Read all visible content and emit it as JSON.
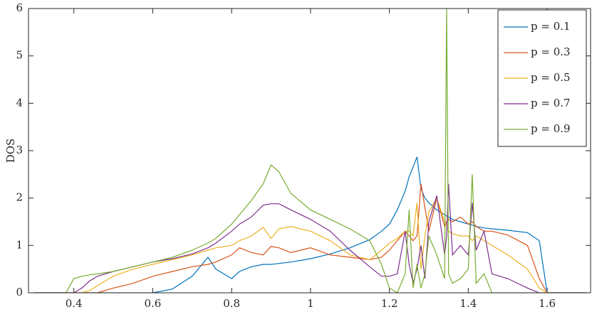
{
  "chart_data": {
    "type": "line",
    "ylabel": "DOS",
    "x": [
      0.3,
      0.35,
      0.38,
      0.4,
      0.42,
      0.44,
      0.46,
      0.5,
      0.55,
      0.6,
      0.65,
      0.7,
      0.74,
      0.76,
      0.8,
      0.82,
      0.85,
      0.88,
      0.9,
      0.92,
      0.95,
      1.0,
      1.05,
      1.1,
      1.15,
      1.18,
      1.2,
      1.22,
      1.24,
      1.25,
      1.26,
      1.27,
      1.28,
      1.29,
      1.3,
      1.32,
      1.34,
      1.345,
      1.35,
      1.36,
      1.38,
      1.4,
      1.41,
      1.42,
      1.44,
      1.46,
      1.5,
      1.55,
      1.58,
      1.6,
      1.62,
      1.7
    ],
    "series": [
      {
        "name": "p = 0.1",
        "color": "#0072bd",
        "values": [
          0,
          0,
          0,
          0,
          0,
          0,
          0,
          0,
          0,
          0,
          0.08,
          0.35,
          0.75,
          0.5,
          0.3,
          0.45,
          0.55,
          0.6,
          0.6,
          0.62,
          0.65,
          0.72,
          0.82,
          0.95,
          1.12,
          1.3,
          1.45,
          1.75,
          2.15,
          2.45,
          2.65,
          2.87,
          2.2,
          2.0,
          1.9,
          1.75,
          1.65,
          1.62,
          1.6,
          1.55,
          1.5,
          1.45,
          1.43,
          1.4,
          1.37,
          1.35,
          1.32,
          1.27,
          1.1,
          0,
          0,
          0
        ]
      },
      {
        "name": "p = 0.3",
        "color": "#d95319",
        "values": [
          0,
          0,
          0,
          0,
          0,
          0,
          0,
          0.1,
          0.2,
          0.35,
          0.45,
          0.55,
          0.6,
          0.65,
          0.8,
          0.95,
          0.85,
          0.8,
          0.98,
          0.95,
          0.85,
          0.95,
          0.8,
          0.75,
          0.7,
          0.75,
          0.9,
          1.1,
          1.3,
          1.2,
          1.1,
          1.2,
          2.3,
          1.8,
          1.3,
          2.0,
          1.4,
          1.5,
          1.55,
          1.5,
          1.6,
          1.45,
          1.5,
          1.4,
          1.3,
          1.3,
          1.22,
          1.0,
          0.3,
          0,
          0,
          0
        ]
      },
      {
        "name": "p = 0.5",
        "color": "#edb120",
        "values": [
          0,
          0,
          0,
          0,
          0,
          0.05,
          0.15,
          0.35,
          0.5,
          0.6,
          0.7,
          0.8,
          0.9,
          0.95,
          1.0,
          1.1,
          1.2,
          1.38,
          1.15,
          1.35,
          1.4,
          1.3,
          1.1,
          0.8,
          0.7,
          0.9,
          1.05,
          1.15,
          1.3,
          1.3,
          1.2,
          1.9,
          0.5,
          1.2,
          1.7,
          2.0,
          1.5,
          1.4,
          1.3,
          1.25,
          1.2,
          1.2,
          1.1,
          1.2,
          1.1,
          1.0,
          0.8,
          0.5,
          0.1,
          0,
          0,
          0
        ]
      },
      {
        "name": "p = 0.7",
        "color": "#7e2f8e",
        "values": [
          0,
          0,
          0,
          0,
          0.1,
          0.25,
          0.35,
          0.45,
          0.55,
          0.65,
          0.72,
          0.82,
          0.95,
          1.05,
          1.3,
          1.45,
          1.6,
          1.85,
          1.88,
          1.88,
          1.75,
          1.55,
          1.3,
          0.9,
          0.55,
          0.35,
          0.35,
          0.4,
          1.3,
          0.6,
          0.2,
          0.5,
          1.0,
          0.3,
          1.5,
          2.05,
          0.8,
          1.2,
          2.3,
          0.8,
          1.0,
          0.8,
          1.9,
          0.9,
          1.3,
          0.4,
          0.3,
          0.1,
          0,
          0,
          0,
          0
        ]
      },
      {
        "name": "p = 0.9",
        "color": "#77ac30",
        "values": [
          0,
          0,
          0,
          0.3,
          0.35,
          0.38,
          0.4,
          0.45,
          0.55,
          0.65,
          0.75,
          0.9,
          1.05,
          1.15,
          1.45,
          1.65,
          1.95,
          2.3,
          2.7,
          2.55,
          2.1,
          1.75,
          1.55,
          1.35,
          1.1,
          0.6,
          0.1,
          0,
          0.4,
          1.75,
          0.1,
          0.6,
          0.1,
          0.4,
          1.2,
          0.8,
          0.3,
          6.0,
          0.4,
          0.2,
          0.3,
          0.5,
          2.5,
          0.2,
          0.4,
          0,
          0,
          0,
          0,
          0,
          0,
          0
        ]
      }
    ],
    "xlim": [
      0.285,
      1.71
    ],
    "ylim": [
      0,
      6
    ],
    "xticks": [
      0.4,
      0.6,
      0.8,
      1,
      1.2,
      1.4,
      1.6
    ],
    "yticks": [
      0,
      1,
      2,
      3,
      4,
      5,
      6
    ],
    "legend": "upper-right"
  }
}
